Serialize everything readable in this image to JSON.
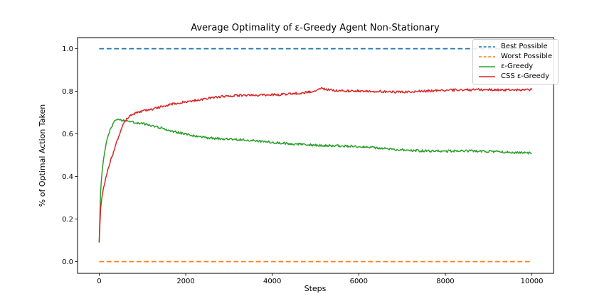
{
  "figure": {
    "background": "#ffffff"
  },
  "colors": {
    "spine": "#000000",
    "text": "#000000",
    "legend_border": "#cccccc",
    "best_possible": "#1f77b4",
    "worst_possible": "#ff7f0e",
    "eps_greedy": "#2ca02c",
    "css_eps_greedy": "#d62728"
  },
  "chart_data": {
    "type": "line",
    "title": "Average Optimality of ε-Greedy Agent Non-Stationary",
    "xlabel": "Steps",
    "ylabel": "% of Optimal Action Taken",
    "xlim": [
      -500,
      10500
    ],
    "ylim": [
      -0.055,
      1.052
    ],
    "grid": false,
    "legend_position": "upper right",
    "xticks": {
      "values": [
        0,
        2000,
        4000,
        6000,
        8000,
        10000
      ],
      "labels": [
        "0",
        "2000",
        "4000",
        "6000",
        "8000",
        "10000"
      ]
    },
    "yticks": {
      "values": [
        0.0,
        0.2,
        0.4,
        0.6,
        0.8,
        1.0
      ],
      "labels": [
        "0.0",
        "0.2",
        "0.4",
        "0.6",
        "0.8",
        "1.0"
      ]
    },
    "series": [
      {
        "name": "Best Possible",
        "color": "#1f77b4",
        "style": "dashed",
        "constant": 1.0,
        "x_range": [
          0,
          10000
        ]
      },
      {
        "name": "Worst Possible",
        "color": "#ff7f0e",
        "style": "dashed",
        "constant": 0.0,
        "x_range": [
          0,
          10000
        ]
      },
      {
        "name": "ε-Greedy",
        "color": "#2ca02c",
        "style": "solid",
        "noise": 0.006,
        "seed": 1.3,
        "keypoints": [
          [
            0,
            0.09
          ],
          [
            30,
            0.32
          ],
          [
            60,
            0.41
          ],
          [
            100,
            0.48
          ],
          [
            150,
            0.545
          ],
          [
            200,
            0.585
          ],
          [
            250,
            0.615
          ],
          [
            300,
            0.638
          ],
          [
            350,
            0.655
          ],
          [
            420,
            0.667
          ],
          [
            500,
            0.664
          ],
          [
            600,
            0.66
          ],
          [
            700,
            0.656
          ],
          [
            800,
            0.652
          ],
          [
            900,
            0.65
          ],
          [
            1000,
            0.648
          ],
          [
            1250,
            0.637
          ],
          [
            1500,
            0.625
          ],
          [
            1750,
            0.612
          ],
          [
            2000,
            0.6
          ],
          [
            2250,
            0.59
          ],
          [
            2500,
            0.581
          ],
          [
            2750,
            0.576
          ],
          [
            3000,
            0.572
          ],
          [
            3250,
            0.568
          ],
          [
            3500,
            0.565
          ],
          [
            3750,
            0.562
          ],
          [
            4000,
            0.559
          ],
          [
            4250,
            0.556
          ],
          [
            4500,
            0.554
          ],
          [
            4750,
            0.551
          ],
          [
            5000,
            0.548
          ],
          [
            5250,
            0.545
          ],
          [
            5500,
            0.543
          ],
          [
            5750,
            0.54
          ],
          [
            6000,
            0.538
          ],
          [
            6250,
            0.535
          ],
          [
            6500,
            0.533
          ],
          [
            6750,
            0.53
          ],
          [
            7000,
            0.528
          ],
          [
            7250,
            0.526
          ],
          [
            7500,
            0.524
          ],
          [
            7750,
            0.522
          ],
          [
            8000,
            0.521
          ],
          [
            8250,
            0.52
          ],
          [
            8500,
            0.519
          ],
          [
            9000,
            0.517
          ],
          [
            9500,
            0.515
          ],
          [
            10000,
            0.513
          ]
        ]
      },
      {
        "name": "CSS ε-Greedy",
        "color": "#d62728",
        "style": "solid",
        "noise": 0.006,
        "seed": 2.7,
        "keypoints": [
          [
            0,
            0.09
          ],
          [
            30,
            0.24
          ],
          [
            60,
            0.3
          ],
          [
            100,
            0.345
          ],
          [
            150,
            0.39
          ],
          [
            200,
            0.43
          ],
          [
            250,
            0.465
          ],
          [
            300,
            0.495
          ],
          [
            350,
            0.525
          ],
          [
            400,
            0.555
          ],
          [
            450,
            0.585
          ],
          [
            500,
            0.615
          ],
          [
            550,
            0.64
          ],
          [
            600,
            0.658
          ],
          [
            650,
            0.672
          ],
          [
            700,
            0.682
          ],
          [
            800,
            0.694
          ],
          [
            900,
            0.701
          ],
          [
            1000,
            0.707
          ],
          [
            1100,
            0.712
          ],
          [
            1200,
            0.716
          ],
          [
            1350,
            0.724
          ],
          [
            1500,
            0.733
          ],
          [
            1650,
            0.74
          ],
          [
            1800,
            0.746
          ],
          [
            2000,
            0.752
          ],
          [
            2250,
            0.758
          ],
          [
            2500,
            0.764
          ],
          [
            2750,
            0.769
          ],
          [
            3000,
            0.774
          ],
          [
            3250,
            0.777
          ],
          [
            3500,
            0.779
          ],
          [
            3750,
            0.781
          ],
          [
            4000,
            0.784
          ],
          [
            4250,
            0.787
          ],
          [
            4500,
            0.79
          ],
          [
            4750,
            0.794
          ],
          [
            5000,
            0.8
          ],
          [
            5150,
            0.812
          ],
          [
            5300,
            0.804
          ],
          [
            5500,
            0.8
          ],
          [
            5750,
            0.799
          ],
          [
            6000,
            0.8
          ],
          [
            6250,
            0.8
          ],
          [
            6500,
            0.801
          ],
          [
            6750,
            0.8
          ],
          [
            7000,
            0.801
          ],
          [
            7250,
            0.802
          ],
          [
            7500,
            0.803
          ],
          [
            7750,
            0.804
          ],
          [
            8000,
            0.805
          ],
          [
            8250,
            0.805
          ],
          [
            8500,
            0.806
          ],
          [
            8750,
            0.807
          ],
          [
            9000,
            0.808
          ],
          [
            9250,
            0.809
          ],
          [
            9500,
            0.81
          ],
          [
            9750,
            0.81
          ],
          [
            10000,
            0.811
          ]
        ]
      }
    ]
  }
}
